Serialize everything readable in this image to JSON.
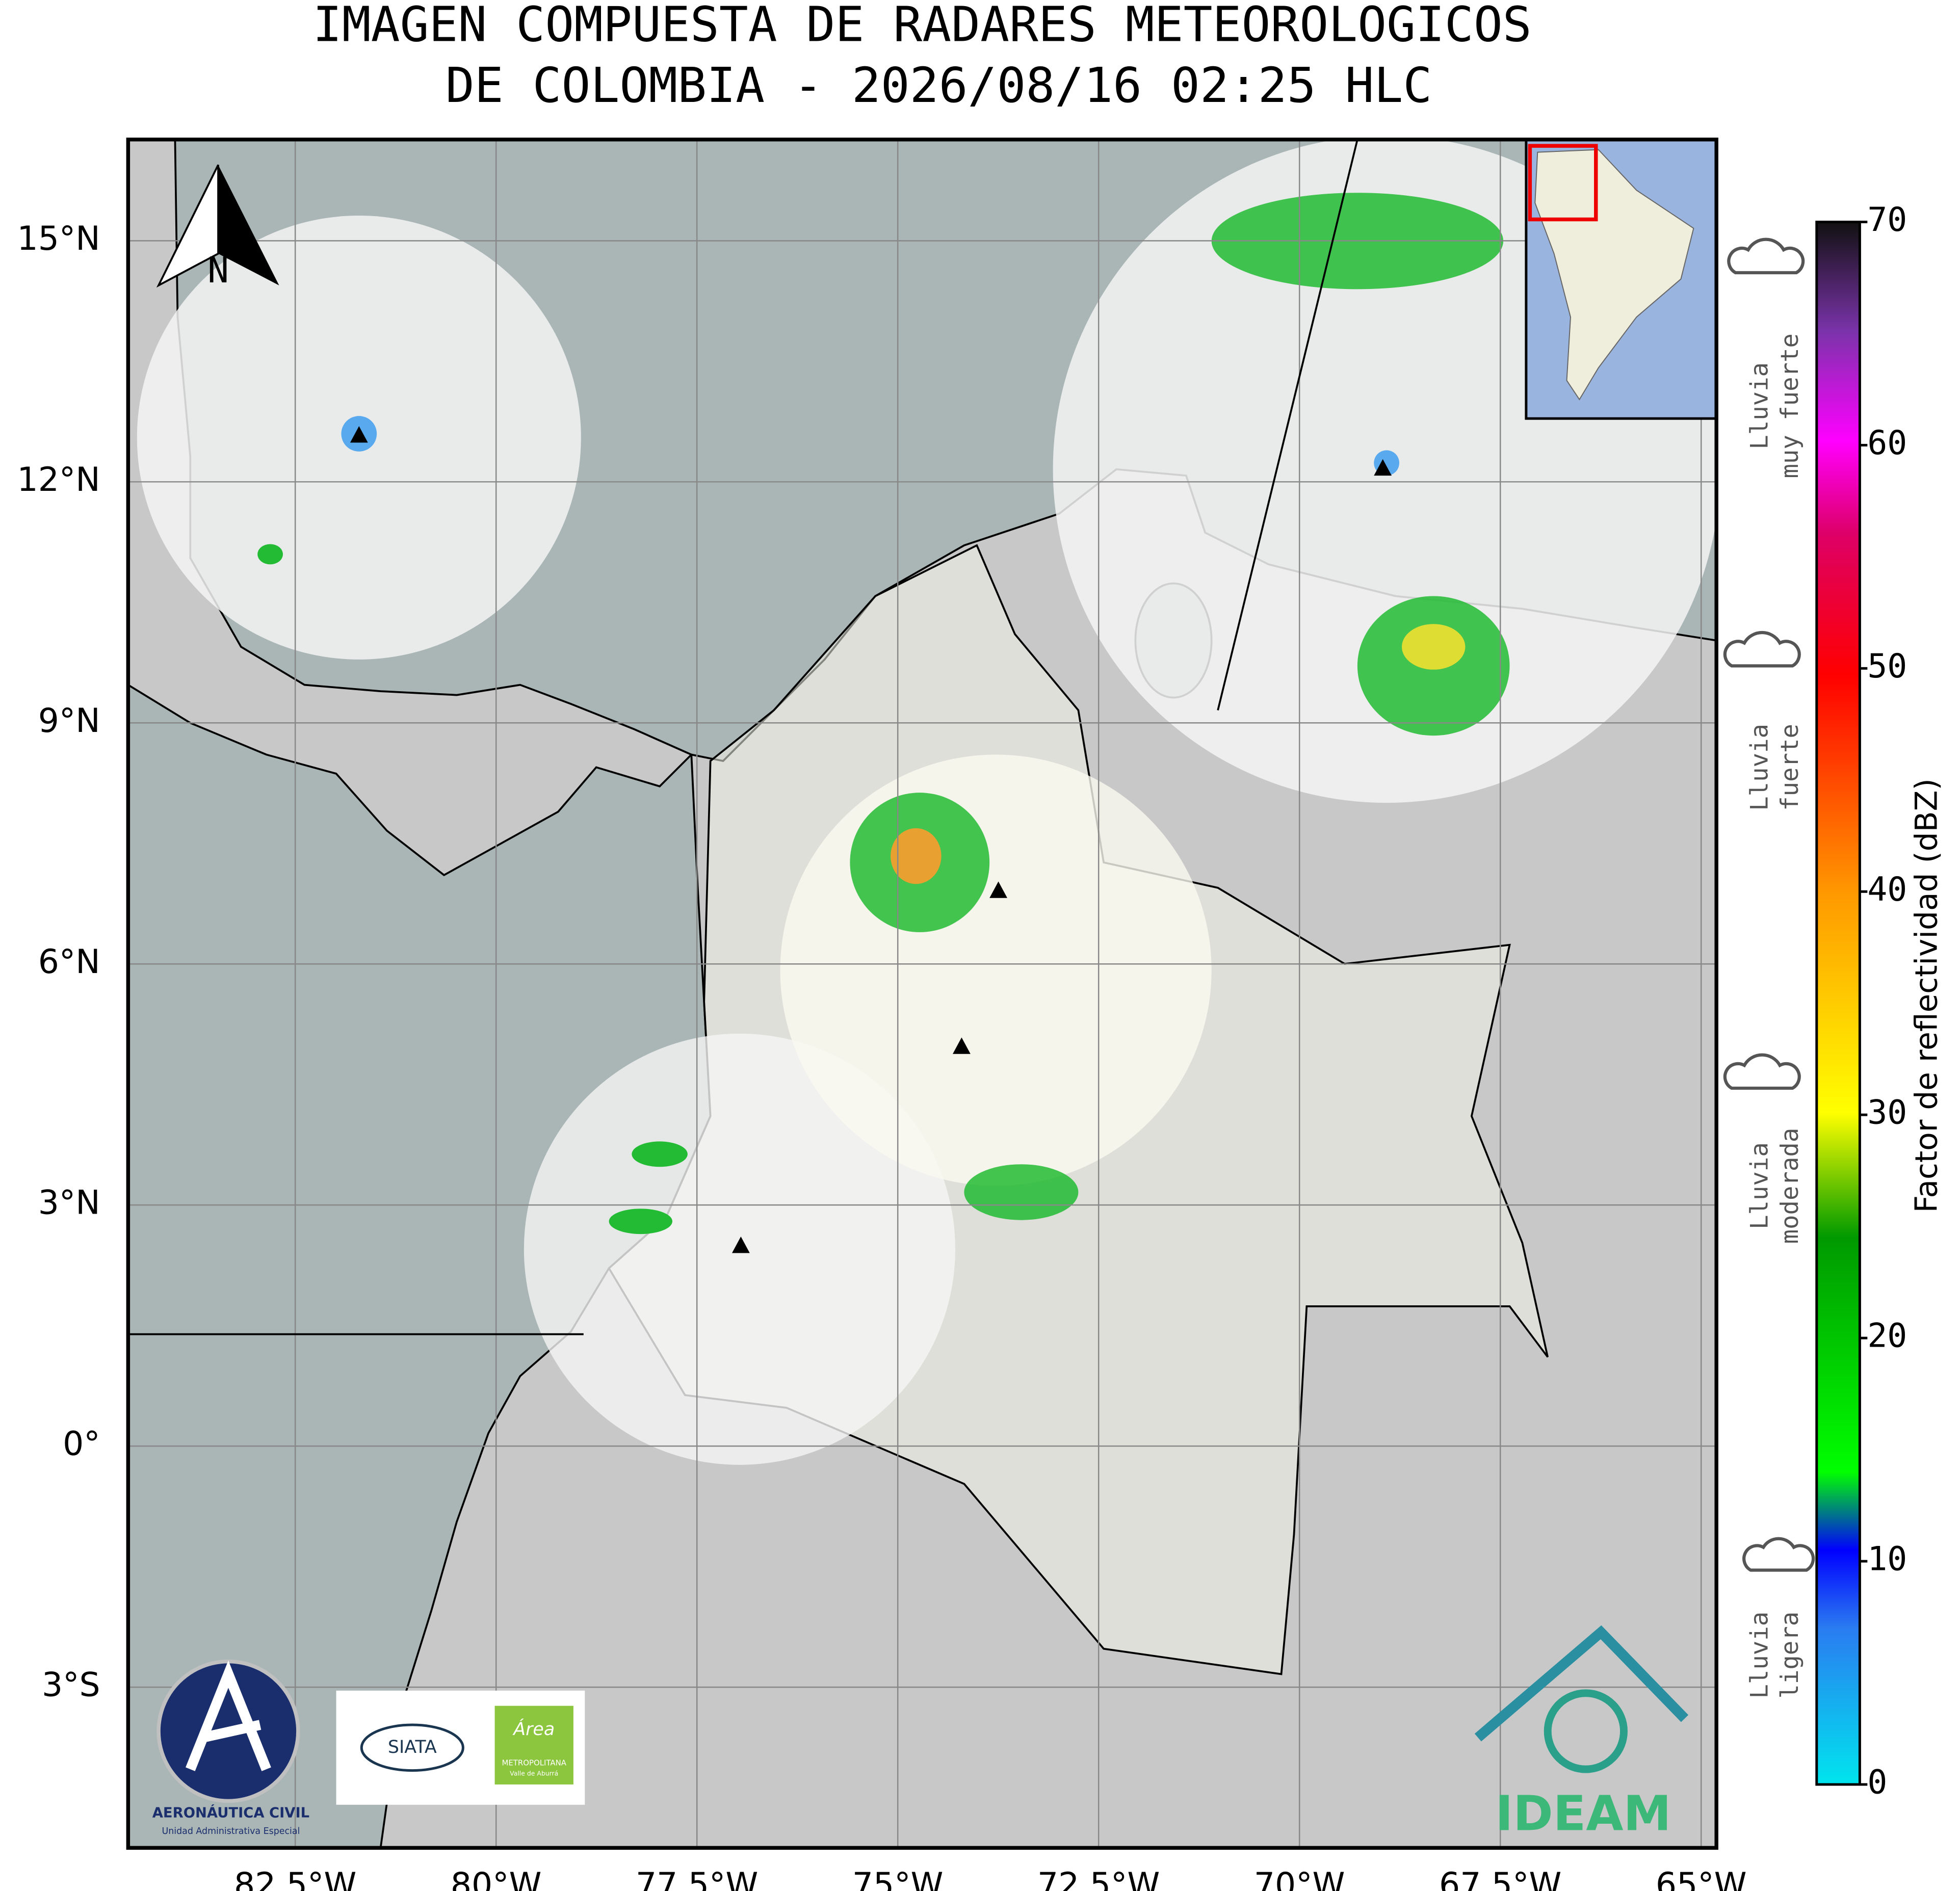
{
  "header": {
    "title_lines": [
      "IMAGEN COMPUESTA DE RADARES METEOROLOGICOS",
      "DE COLOMBIA - 2026/08/16 02:25 HLC"
    ]
  },
  "map": {
    "xlim": [
      -84.58,
      -64.81
    ],
    "ylim": [
      -5.0,
      16.26
    ],
    "grid": true,
    "lon_ticks": [
      {
        "value": -82.5,
        "label": "82.5°W"
      },
      {
        "value": -80,
        "label": "80°W"
      },
      {
        "value": -77.5,
        "label": "77.5°W"
      },
      {
        "value": -75,
        "label": "75°W"
      },
      {
        "value": -72.5,
        "label": "72.5°W"
      },
      {
        "value": -70,
        "label": "70°W"
      },
      {
        "value": -67.5,
        "label": "67.5°W"
      },
      {
        "value": -65,
        "label": "65°W"
      }
    ],
    "lat_ticks": [
      {
        "value": 15,
        "label": "15°N"
      },
      {
        "value": 12,
        "label": "12°N"
      },
      {
        "value": 9,
        "label": "9°N"
      },
      {
        "value": 6,
        "label": "6°N"
      },
      {
        "value": 3,
        "label": "3°N"
      },
      {
        "value": 0,
        "label": "0°"
      },
      {
        "value": -3,
        "label": "3°S"
      }
    ],
    "north_label": "N"
  },
  "colorbar": {
    "label": "Factor de reflectividad (dBZ)",
    "lim": [
      0,
      70
    ],
    "ticks": [
      0,
      10,
      20,
      30,
      40,
      50,
      60,
      70
    ]
  },
  "rain_legend": [
    [
      "Lluvia",
      "muy fuerte"
    ],
    [
      "Lluvia",
      "fuerte"
    ],
    [
      "Lluvia",
      "moderada"
    ],
    [
      "Lluvia",
      "ligera"
    ]
  ],
  "logos": {
    "aerocivil": [
      "AERONÁUTICA CIVIL",
      "Unidad Administrativa Especial"
    ],
    "siata": "SIATA",
    "area": [
      "Área",
      "METROPOLITANA",
      "Valle de Aburrá"
    ],
    "ideam": "IDEAM"
  }
}
